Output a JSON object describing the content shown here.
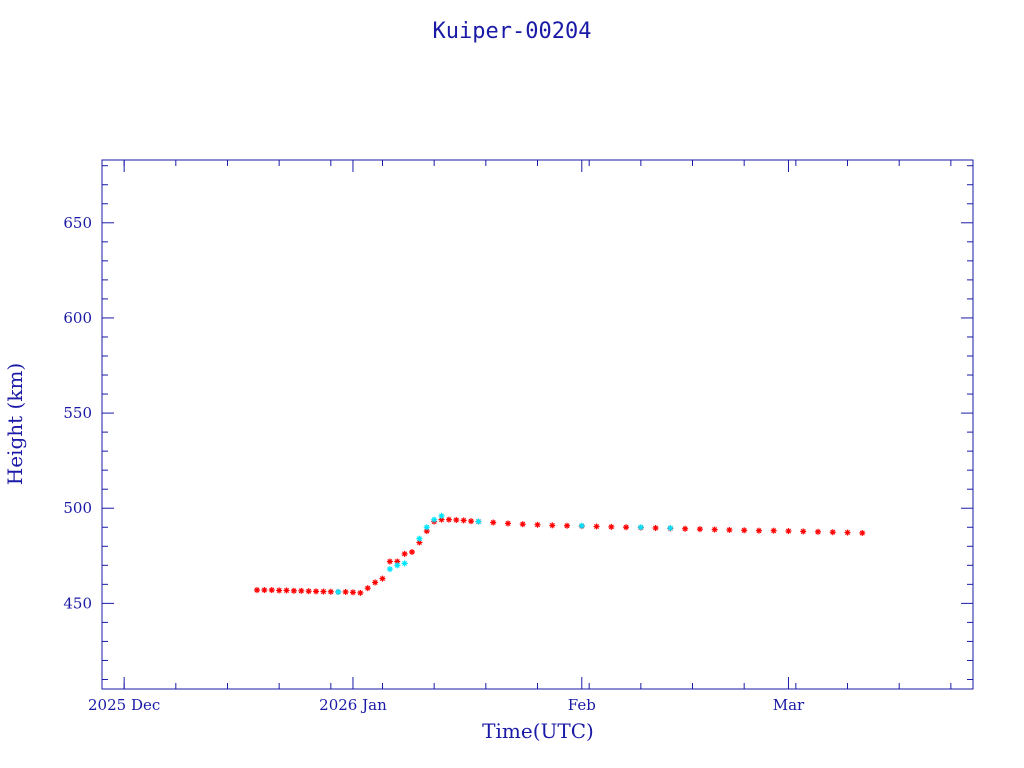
{
  "chart_data": {
    "type": "scatter",
    "title": "Kuiper-00204",
    "xlabel": "Time(UTC)",
    "ylabel": "Height (km)",
    "x_axis": {
      "type": "date",
      "range": [
        "2025-11-28",
        "2026-03-26"
      ],
      "tick_labels": [
        {
          "date": "2025-12-01",
          "label": "2025 Dec"
        },
        {
          "date": "2026-01-01",
          "label": "2026 Jan"
        },
        {
          "date": "2026-02-01",
          "label": "Feb"
        },
        {
          "date": "2026-03-01",
          "label": "Mar"
        }
      ]
    },
    "y_axis": {
      "range": [
        405,
        683
      ],
      "ticks": [
        450,
        500,
        550,
        600,
        650
      ]
    },
    "grid": false,
    "colors": {
      "axis": "#1a1aa6",
      "primary_marker": "#ff0000",
      "secondary_marker": "#00e5ff"
    },
    "series": [
      {
        "marker": "asterisk",
        "color": "#ff0000",
        "points": [
          {
            "x": "2025-12-19",
            "y": 457
          },
          {
            "x": "2025-12-20",
            "y": 457
          },
          {
            "x": "2025-12-21",
            "y": 457
          },
          {
            "x": "2025-12-22",
            "y": 456.8
          },
          {
            "x": "2025-12-23",
            "y": 456.8
          },
          {
            "x": "2025-12-24",
            "y": 456.6
          },
          {
            "x": "2025-12-25",
            "y": 456.6
          },
          {
            "x": "2025-12-26",
            "y": 456.4
          },
          {
            "x": "2025-12-27",
            "y": 456.3
          },
          {
            "x": "2025-12-28",
            "y": 456.2
          },
          {
            "x": "2025-12-29",
            "y": 456.1
          },
          {
            "x": "2025-12-30",
            "y": 456
          },
          {
            "x": "2025-12-31",
            "y": 456
          },
          {
            "x": "2026-01-01",
            "y": 455.8
          },
          {
            "x": "2026-01-02",
            "y": 455.5
          },
          {
            "x": "2026-01-03",
            "y": 458
          },
          {
            "x": "2026-01-04",
            "y": 461
          },
          {
            "x": "2026-01-05",
            "y": 463
          },
          {
            "x": "2026-01-06",
            "y": 472
          },
          {
            "x": "2026-01-07",
            "y": 472
          },
          {
            "x": "2026-01-08",
            "y": 476
          },
          {
            "x": "2026-01-09",
            "y": 477
          },
          {
            "x": "2026-01-10",
            "y": 482
          },
          {
            "x": "2026-01-11",
            "y": 488
          },
          {
            "x": "2026-01-12",
            "y": 493
          },
          {
            "x": "2026-01-13",
            "y": 494
          },
          {
            "x": "2026-01-14",
            "y": 494
          },
          {
            "x": "2026-01-15",
            "y": 493.8
          },
          {
            "x": "2026-01-16",
            "y": 493.6
          },
          {
            "x": "2026-01-17",
            "y": 493.2
          },
          {
            "x": "2026-01-18",
            "y": 493
          },
          {
            "x": "2026-01-20",
            "y": 492.5
          },
          {
            "x": "2026-01-22",
            "y": 492
          },
          {
            "x": "2026-01-24",
            "y": 491.6
          },
          {
            "x": "2026-01-26",
            "y": 491.3
          },
          {
            "x": "2026-01-28",
            "y": 491
          },
          {
            "x": "2026-01-30",
            "y": 490.8
          },
          {
            "x": "2026-02-01",
            "y": 490.6
          },
          {
            "x": "2026-02-03",
            "y": 490.4
          },
          {
            "x": "2026-02-05",
            "y": 490.2
          },
          {
            "x": "2026-02-07",
            "y": 490
          },
          {
            "x": "2026-02-09",
            "y": 489.8
          },
          {
            "x": "2026-02-11",
            "y": 489.6
          },
          {
            "x": "2026-02-13",
            "y": 489.4
          },
          {
            "x": "2026-02-15",
            "y": 489.2
          },
          {
            "x": "2026-02-17",
            "y": 489
          },
          {
            "x": "2026-02-19",
            "y": 488.8
          },
          {
            "x": "2026-02-21",
            "y": 488.6
          },
          {
            "x": "2026-02-23",
            "y": 488.4
          },
          {
            "x": "2026-02-25",
            "y": 488.2
          },
          {
            "x": "2026-02-27",
            "y": 488.2
          },
          {
            "x": "2026-03-01",
            "y": 488
          },
          {
            "x": "2026-03-03",
            "y": 487.8
          },
          {
            "x": "2026-03-05",
            "y": 487.6
          },
          {
            "x": "2026-03-07",
            "y": 487.4
          },
          {
            "x": "2026-03-09",
            "y": 487.2
          },
          {
            "x": "2026-03-11",
            "y": 487
          }
        ]
      },
      {
        "marker": "asterisk",
        "color": "#00e5ff",
        "points": [
          {
            "x": "2025-12-30",
            "y": 456
          },
          {
            "x": "2026-01-06",
            "y": 468
          },
          {
            "x": "2026-01-07",
            "y": 470
          },
          {
            "x": "2026-01-08",
            "y": 471
          },
          {
            "x": "2026-01-10",
            "y": 484
          },
          {
            "x": "2026-01-11",
            "y": 490
          },
          {
            "x": "2026-01-12",
            "y": 494
          },
          {
            "x": "2026-01-13",
            "y": 496
          },
          {
            "x": "2026-01-18",
            "y": 493
          },
          {
            "x": "2026-02-01",
            "y": 490.8
          },
          {
            "x": "2026-02-09",
            "y": 490
          },
          {
            "x": "2026-02-13",
            "y": 489.6
          }
        ]
      }
    ]
  }
}
